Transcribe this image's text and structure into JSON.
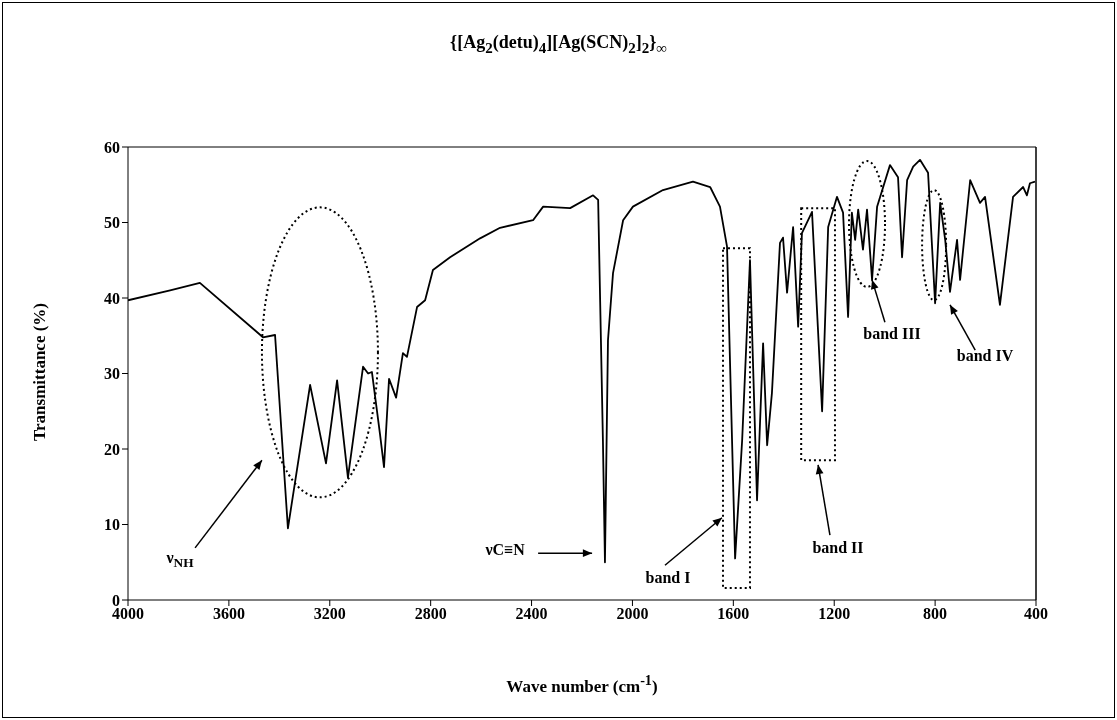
{
  "chart_data": {
    "type": "line",
    "title": "{[Ag$_{2}$(detu)$_{4}$][Ag(SCN)$_{2}$]$_{2}$}$_{∞}$",
    "xlabel": "Wave number (cm$^{-1}$)",
    "ylabel": "Transmittance (%)",
    "x": [
      4000,
      3833,
      3715,
      3465,
      3417,
      3366,
      3278,
      3215,
      3171,
      3128,
      3068,
      3048,
      3033,
      3001,
      2985,
      2965,
      2937,
      2910,
      2894,
      2854,
      2822,
      2791,
      2723,
      2604,
      2525,
      2394,
      2354,
      2247,
      2156,
      2136,
      2117,
      2109,
      2097,
      2077,
      2037,
      1998,
      1879,
      1760,
      1692,
      1653,
      1625,
      1593,
      1565,
      1534,
      1506,
      1482,
      1466,
      1447,
      1415,
      1403,
      1387,
      1363,
      1343,
      1328,
      1288,
      1248,
      1224,
      1189,
      1165,
      1145,
      1130,
      1117,
      1105,
      1086,
      1070,
      1050,
      1030,
      979,
      947,
      931,
      911,
      887,
      860,
      828,
      800,
      780,
      760,
      741,
      713,
      701,
      661,
      622,
      602,
      543,
      491,
      451,
      436,
      424,
      404
    ],
    "series": [
      {
        "color": "#000000",
        "values": [
          39.7,
          41,
          42,
          34.8,
          35.1,
          9.5,
          28.5,
          18.1,
          29.1,
          16.2,
          30.9,
          30,
          30.2,
          22,
          17.6,
          29.3,
          26.8,
          32.7,
          32.2,
          38.8,
          39.7,
          43.7,
          45.4,
          47.9,
          49.3,
          50.3,
          52.1,
          51.9,
          53.6,
          53,
          21,
          5,
          34.4,
          43.3,
          50.3,
          52.1,
          54.3,
          55.4,
          54.7,
          52.1,
          46.8,
          5.5,
          21.2,
          45,
          13.2,
          34,
          20.5,
          27.4,
          47.3,
          48,
          40.7,
          49.4,
          36.2,
          48.6,
          51.4,
          25,
          49.4,
          53.4,
          51.3,
          37.5,
          51.3,
          47.7,
          51.7,
          46.4,
          51.7,
          42.4,
          52.1,
          57.6,
          56,
          45.4,
          55.6,
          57.4,
          58.3,
          56.6,
          39.3,
          52.6,
          47.7,
          40.8,
          47.7,
          42.4,
          55.6,
          52.6,
          53.4,
          39.1,
          53.4,
          54.7,
          53.6,
          55.2,
          55.4
        ]
      }
    ],
    "xlim": [
      4000,
      400
    ],
    "xticks": [
      4000,
      3600,
      3200,
      2800,
      2400,
      2000,
      1600,
      1200,
      800,
      400
    ],
    "ylim": [
      0,
      60
    ],
    "yticks": [
      0,
      10,
      20,
      30,
      40,
      50,
      60
    ],
    "marker": "none",
    "line_style": "solid",
    "annotations": [
      "ν$_{NH}$",
      "νC≡N",
      "band I",
      "band II",
      {
        "text": "band III",
        "x": 1050,
        "y": 42.4
      },
      "band IV"
    ]
  }
}
